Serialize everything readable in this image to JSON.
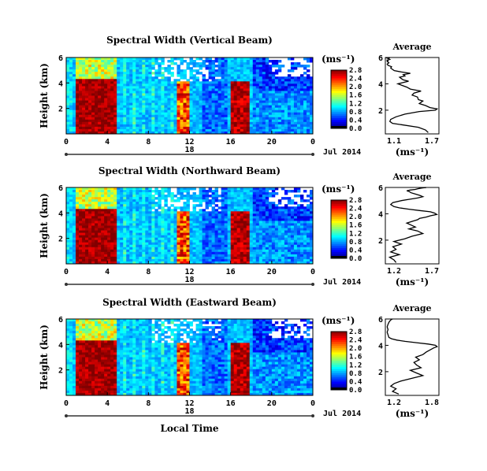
{
  "chart_data": [
    {
      "type": "heatmap",
      "title": "Spectral Width (Vertical Beam)",
      "ylabel": "Height (km)",
      "xlabel": "",
      "xticks": [
        "0",
        "4",
        "8",
        "12",
        "16",
        "20",
        "0"
      ],
      "yticks": [
        "6",
        "4",
        "2"
      ],
      "date_day": "18",
      "date_label": "Jul 2014",
      "colorbar": {
        "unit": "(ms⁻¹)",
        "ticks": [
          "2.8",
          "2.4",
          "2.0",
          "1.6",
          "1.2",
          "0.8",
          "0.4",
          "0.0"
        ],
        "range": [
          0,
          2.8
        ]
      },
      "profile": {
        "title": "Average",
        "xlabel": "(ms⁻¹)",
        "xticks": [
          "1.1",
          "1.7"
        ],
        "yticks": [
          "6",
          "4",
          "2"
        ],
        "xlim": [
          1.1,
          1.7
        ],
        "ylim": [
          0.2,
          6.0
        ],
        "x": [
          1.58,
          1.55,
          1.47,
          1.28,
          1.18,
          1.15,
          1.16,
          1.22,
          1.32,
          1.48,
          1.66,
          1.68,
          1.6,
          1.55,
          1.48,
          1.52,
          1.47,
          1.46,
          1.4,
          1.42,
          1.5,
          1.38,
          1.34,
          1.28,
          1.24,
          1.3,
          1.36,
          1.3,
          1.28,
          1.26,
          1.32,
          1.3,
          1.38,
          1.28,
          1.2,
          1.18,
          1.16,
          1.17,
          1.13,
          1.12,
          1.14,
          1.12,
          1.13,
          1.12,
          1.15,
          1.14,
          1.12,
          1.13,
          1.15,
          1.14
        ],
        "y": [
          0.3,
          0.5,
          0.7,
          0.9,
          1.0,
          1.15,
          1.3,
          1.5,
          1.7,
          1.9,
          2.0,
          2.1,
          2.2,
          2.35,
          2.5,
          2.7,
          2.8,
          3.0,
          3.15,
          3.3,
          3.45,
          3.6,
          3.75,
          3.9,
          4.0,
          4.1,
          4.2,
          4.3,
          4.4,
          4.5,
          4.6,
          4.7,
          4.8,
          4.9,
          5.0,
          5.1,
          5.2,
          5.3,
          5.4,
          5.5,
          5.6,
          5.7,
          5.75,
          5.8,
          5.85,
          5.9,
          5.95,
          5.97,
          5.98,
          6.0
        ]
      }
    },
    {
      "type": "heatmap",
      "title": "Spectral Width (Northward Beam)",
      "ylabel": "Height (km)",
      "xlabel": "",
      "xticks": [
        "0",
        "4",
        "8",
        "12",
        "16",
        "20",
        "0"
      ],
      "yticks": [
        "6",
        "4",
        "2"
      ],
      "date_day": "18",
      "date_label": "Jul 2014",
      "colorbar": {
        "unit": "(ms⁻¹)",
        "ticks": [
          "2.8",
          "2.4",
          "2.0",
          "1.6",
          "1.2",
          "0.8",
          "0.4",
          "0.0"
        ],
        "range": [
          0,
          2.8
        ]
      },
      "profile": {
        "title": "Average",
        "xlabel": "(ms⁻¹)",
        "xticks": [
          "1.2",
          "1.7"
        ],
        "yticks": [
          "6",
          "4",
          "2"
        ],
        "xlim": [
          1.2,
          1.7
        ],
        "ylim": [
          0.2,
          6.0
        ],
        "x": [
          1.3,
          1.28,
          1.24,
          1.33,
          1.25,
          1.3,
          1.27,
          1.35,
          1.28,
          1.38,
          1.45,
          1.55,
          1.5,
          1.42,
          1.48,
          1.44,
          1.4,
          1.46,
          1.5,
          1.52,
          1.58,
          1.62,
          1.68,
          1.66,
          1.62,
          1.52,
          1.42,
          1.33,
          1.28,
          1.25,
          1.27,
          1.35,
          1.42,
          1.5,
          1.55,
          1.52,
          1.48,
          1.44,
          1.42,
          1.4,
          1.43,
          1.48,
          1.5,
          1.52,
          1.54,
          1.56,
          1.58,
          1.57
        ],
        "y": [
          0.3,
          0.5,
          0.7,
          0.9,
          1.1,
          1.3,
          1.5,
          1.7,
          1.9,
          2.1,
          2.3,
          2.5,
          2.7,
          2.85,
          3.0,
          3.15,
          3.3,
          3.45,
          3.55,
          3.65,
          3.75,
          3.85,
          3.95,
          4.05,
          4.15,
          4.25,
          4.35,
          4.45,
          4.55,
          4.7,
          4.85,
          5.0,
          5.1,
          5.2,
          5.3,
          5.4,
          5.5,
          5.6,
          5.7,
          5.75,
          5.8,
          5.85,
          5.9,
          5.93,
          5.96,
          5.98,
          5.99,
          6.0
        ]
      }
    },
    {
      "type": "heatmap",
      "title": "Spectral Width (Eastward Beam)",
      "ylabel": "Height (km)",
      "xlabel": "Local Time",
      "xticks": [
        "0",
        "4",
        "8",
        "12",
        "16",
        "20",
        "0"
      ],
      "yticks": [
        "6",
        "4",
        "2"
      ],
      "date_day": "18",
      "date_label": "Jul 2014",
      "colorbar": {
        "unit": "(ms⁻¹)",
        "ticks": [
          "2.8",
          "2.4",
          "2.0",
          "1.6",
          "1.2",
          "0.8",
          "0.4",
          "0.0"
        ],
        "range": [
          0,
          2.8
        ]
      },
      "profile": {
        "title": "Average",
        "xlabel": "(ms⁻¹)",
        "xticks": [
          "1.2",
          "1.8"
        ],
        "yticks": [
          "6",
          "4",
          "2"
        ],
        "xlim": [
          1.2,
          1.8
        ],
        "ylim": [
          0.2,
          6.0
        ],
        "x": [
          1.35,
          1.28,
          1.32,
          1.26,
          1.3,
          1.38,
          1.5,
          1.62,
          1.55,
          1.48,
          1.6,
          1.55,
          1.52,
          1.58,
          1.54,
          1.62,
          1.66,
          1.7,
          1.74,
          1.78,
          1.76,
          1.68,
          1.55,
          1.42,
          1.33,
          1.27,
          1.24,
          1.23,
          1.22,
          1.23,
          1.22,
          1.23,
          1.24,
          1.25,
          1.26,
          1.27,
          1.28
        ],
        "y": [
          0.3,
          0.5,
          0.7,
          0.9,
          1.1,
          1.3,
          1.5,
          1.7,
          1.9,
          2.1,
          2.3,
          2.5,
          2.7,
          2.9,
          3.1,
          3.3,
          3.5,
          3.65,
          3.8,
          3.9,
          4.0,
          4.1,
          4.2,
          4.3,
          4.4,
          4.5,
          4.6,
          4.8,
          5.0,
          5.2,
          5.4,
          5.6,
          5.75,
          5.85,
          5.92,
          5.97,
          6.0
        ]
      }
    }
  ]
}
